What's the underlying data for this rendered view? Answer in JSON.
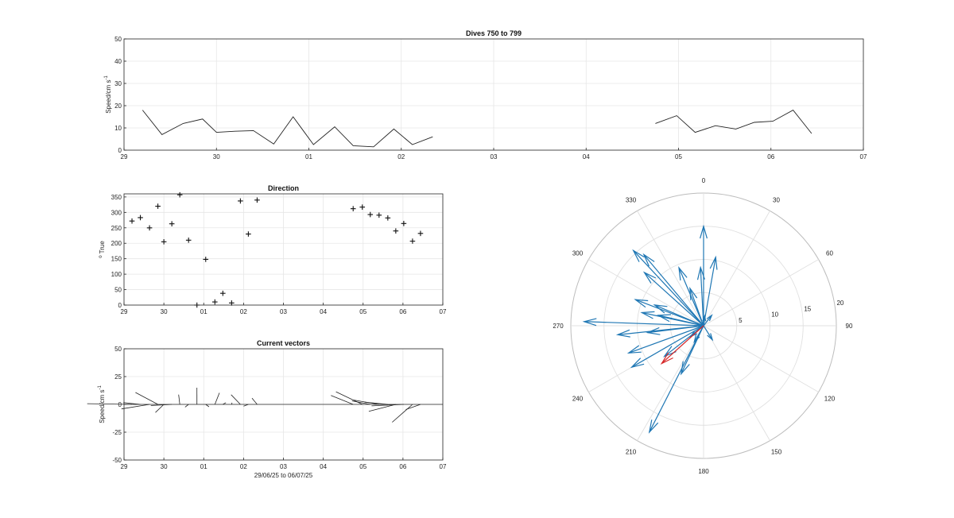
{
  "chart_data": [
    {
      "type": "line",
      "title": "Dives 750 to 799",
      "ylabel_main": "Speed/cm s",
      "ylabel_exp": "-1",
      "xlabel": "",
      "ylim": [
        0,
        50
      ],
      "yticks": [
        0,
        10,
        20,
        30,
        40,
        50
      ],
      "xlim": [
        0,
        8
      ],
      "xticks": [
        0,
        1,
        2,
        3,
        4,
        5,
        6,
        7,
        8
      ],
      "xticklabels": [
        "29",
        "30",
        "01",
        "02",
        "03",
        "04",
        "05",
        "06",
        "07"
      ],
      "grid": true,
      "series": [
        {
          "color": "#222222",
          "segments": [
            [
              [
                0.2,
                18
              ],
              [
                0.41,
                7
              ],
              [
                0.64,
                12
              ],
              [
                0.85,
                14
              ],
              [
                1.0,
                8
              ],
              [
                1.2,
                8.5
              ],
              [
                1.4,
                8.8
              ],
              [
                1.62,
                2.8
              ],
              [
                1.83,
                15
              ],
              [
                2.05,
                2.5
              ],
              [
                2.28,
                10.5
              ],
              [
                2.48,
                2
              ],
              [
                2.7,
                1.5
              ],
              [
                2.92,
                9.5
              ],
              [
                3.12,
                2.5
              ],
              [
                3.34,
                6
              ]
            ],
            [
              [
                5.75,
                12
              ],
              [
                5.98,
                15.5
              ],
              [
                6.18,
                8
              ],
              [
                6.4,
                11
              ],
              [
                6.62,
                9.5
              ],
              [
                6.82,
                12.5
              ],
              [
                7.02,
                13
              ],
              [
                7.24,
                18
              ],
              [
                7.44,
                7.5
              ]
            ]
          ]
        }
      ]
    },
    {
      "type": "scatter",
      "title": "Direction",
      "ylabel_sup": "o",
      "ylabel_main": " True",
      "xlabel": "",
      "ylim": [
        0,
        360
      ],
      "yticks": [
        0,
        50,
        100,
        150,
        200,
        250,
        300,
        350
      ],
      "xlim": [
        0,
        8
      ],
      "xticks": [
        0,
        1,
        2,
        3,
        4,
        5,
        6,
        7,
        8
      ],
      "xticklabels": [
        "29",
        "30",
        "01",
        "02",
        "03",
        "04",
        "05",
        "06",
        "07"
      ],
      "grid": true,
      "marker": "+",
      "x": [
        0.2,
        0.41,
        0.64,
        0.85,
        1.0,
        1.2,
        1.4,
        1.62,
        1.83,
        2.05,
        2.28,
        2.48,
        2.7,
        2.92,
        3.12,
        3.34,
        5.75,
        5.98,
        6.18,
        6.4,
        6.62,
        6.82,
        7.02,
        7.24,
        7.44
      ],
      "y": [
        272,
        283,
        250,
        320,
        205,
        263,
        357,
        210,
        0,
        148,
        10,
        38,
        7,
        337,
        230,
        340,
        312,
        317,
        293,
        291,
        282,
        240,
        264,
        207,
        232
      ]
    },
    {
      "type": "line",
      "title": "Current vectors",
      "ylabel_main": "Speed/cm s",
      "ylabel_exp": "-1",
      "xlabel": "29/06/25 to 06/07/25",
      "ylim": [
        -50,
        50
      ],
      "yticks": [
        -50,
        -25,
        0,
        25,
        50
      ],
      "xlim": [
        0,
        8
      ],
      "xticks": [
        0,
        1,
        2,
        3,
        4,
        5,
        6,
        7,
        8
      ],
      "xticklabels": [
        "29",
        "30",
        "01",
        "02",
        "03",
        "04",
        "05",
        "06",
        "07"
      ],
      "grid": true,
      "vector_stick": true,
      "baseline": 0,
      "speeds": [
        18,
        7,
        12,
        14,
        8,
        8.5,
        8.8,
        2.8,
        15,
        2.5,
        10.5,
        2,
        1.5,
        9.5,
        2.5,
        6,
        12,
        15.5,
        8,
        11,
        9.5,
        12.5,
        13,
        18,
        7.5
      ]
    },
    {
      "type": "polar",
      "subtype": "compass",
      "theta_zero": "top",
      "theta_direction": "clockwise",
      "r_max": 20,
      "r_ticks": [
        5,
        10,
        15,
        20
      ],
      "r_tick_labels": [
        "5",
        "10",
        "15",
        "20"
      ],
      "theta_ticks": [
        0,
        30,
        60,
        90,
        120,
        150,
        180,
        210,
        240,
        270,
        300,
        330
      ],
      "theta_tick_labels": [
        "0",
        "30",
        "60",
        "90",
        "120",
        "150",
        "180",
        "210",
        "240",
        "270",
        "300",
        "330"
      ],
      "grid": true,
      "series": [
        {
          "color": "#1f77b4",
          "vectors": [
            {
              "dir": 272,
              "speed": 18
            },
            {
              "dir": 283,
              "speed": 7
            },
            {
              "dir": 250,
              "speed": 12
            },
            {
              "dir": 320,
              "speed": 14
            },
            {
              "dir": 205,
              "speed": 8
            },
            {
              "dir": 263,
              "speed": 8.5
            },
            {
              "dir": 357,
              "speed": 8.8
            },
            {
              "dir": 210,
              "speed": 2.8
            },
            {
              "dir": 0,
              "speed": 15
            },
            {
              "dir": 148,
              "speed": 2.5
            },
            {
              "dir": 10,
              "speed": 10.5
            },
            {
              "dir": 38,
              "speed": 2
            },
            {
              "dir": 7,
              "speed": 1.5
            },
            {
              "dir": 337,
              "speed": 9.5
            },
            {
              "dir": 230,
              "speed": 2.5
            },
            {
              "dir": 340,
              "speed": 6
            },
            {
              "dir": 312,
              "speed": 12
            },
            {
              "dir": 317,
              "speed": 15.5
            },
            {
              "dir": 293,
              "speed": 8
            },
            {
              "dir": 291,
              "speed": 11
            },
            {
              "dir": 282,
              "speed": 9.5
            },
            {
              "dir": 240,
              "speed": 12.5
            },
            {
              "dir": 264,
              "speed": 13
            },
            {
              "dir": 207,
              "speed": 18
            },
            {
              "dir": 232,
              "speed": 7.5
            }
          ]
        },
        {
          "color": "#d62728",
          "vectors": [
            {
              "dir": 228,
              "speed": 8.5
            }
          ]
        }
      ]
    }
  ]
}
